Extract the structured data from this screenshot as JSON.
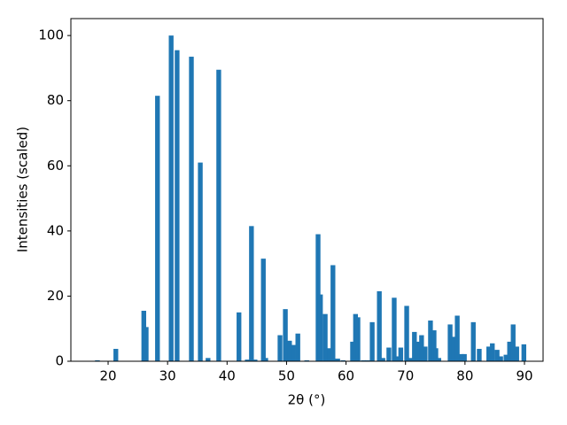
{
  "chart_data": {
    "type": "bar",
    "color": "#1f77b4",
    "x_label": "2θ (°)",
    "y_label": "Intensities (scaled)",
    "x": [
      18.2,
      21.3,
      26.0,
      26.4,
      28.3,
      30.6,
      31.6,
      34.0,
      35.5,
      36.8,
      38.6,
      42.0,
      43.4,
      44.1,
      44.7,
      46.1,
      46.5,
      48.9,
      49.8,
      50.5,
      51.1,
      51.9,
      53.4,
      55.3,
      55.7,
      56.5,
      57.2,
      57.8,
      58.6,
      59.5,
      61.1,
      61.6,
      62.0,
      62.9,
      63.6,
      64.4,
      65.6,
      66.2,
      67.2,
      68.1,
      68.7,
      69.2,
      70.2,
      70.8,
      71.5,
      72.0,
      72.7,
      73.3,
      74.2,
      74.8,
      75.1,
      75.6,
      77.5,
      78.1,
      78.7,
      79.4,
      79.9,
      81.4,
      82.4,
      84.0,
      84.6,
      85.4,
      86.0,
      86.9,
      87.5,
      88.1,
      88.7,
      89.9
    ],
    "values": [
      0.3,
      3.8,
      15.5,
      10.5,
      81.5,
      100,
      95.5,
      93.5,
      61,
      1,
      89.5,
      15,
      0.5,
      41.5,
      0.5,
      31.5,
      1,
      8,
      16,
      6.3,
      5,
      8.5,
      0.3,
      39,
      20.5,
      14.5,
      4,
      29.5,
      0.8,
      0.3,
      6,
      14.5,
      13.5,
      0.3,
      0.3,
      12,
      21.5,
      1,
      4.2,
      19.5,
      1.5,
      4.2,
      17,
      1,
      9,
      6,
      8,
      4.5,
      12.5,
      9.5,
      4,
      1,
      11.3,
      7.5,
      14,
      2.2,
      2.2,
      12,
      3.8,
      4.5,
      5.5,
      3.5,
      1.5,
      2,
      6,
      11.3,
      4.5,
      5.2
    ],
    "xlim": [
      13.74,
      93.13
    ],
    "xticks": [
      20,
      30,
      40,
      50,
      60,
      70,
      80,
      90
    ],
    "ylim": [
      0,
      105.2
    ],
    "yticks": [
      0,
      20,
      40,
      60,
      80,
      100
    ],
    "grid": false
  }
}
